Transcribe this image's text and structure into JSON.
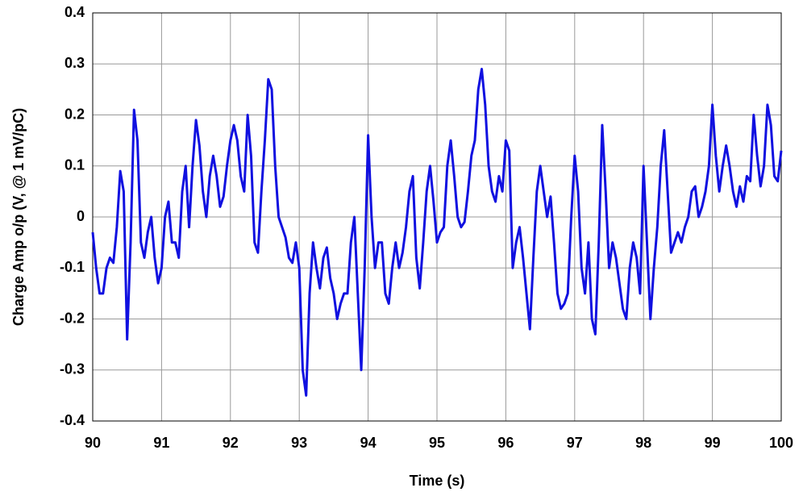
{
  "chart_data": {
    "type": "line",
    "x_label": "Time (s)",
    "y_label": "Charge Amp o/p (V, @ 1 mV/pC)",
    "xlim": [
      90,
      100
    ],
    "xticks": [
      90,
      91,
      92,
      93,
      94,
      95,
      96,
      97,
      98,
      99,
      100
    ],
    "ylim": [
      -0.4,
      0.4
    ],
    "yticks": [
      -0.4,
      -0.3,
      -0.2,
      -0.1,
      0,
      0.1,
      0.2,
      0.3,
      0.4
    ],
    "grid": true,
    "x": [
      90.0,
      90.05,
      90.1,
      90.15,
      90.2,
      90.25,
      90.3,
      90.35,
      90.4,
      90.45,
      90.5,
      90.55,
      90.6,
      90.65,
      90.7,
      90.75,
      90.8,
      90.85,
      90.9,
      90.95,
      91.0,
      91.05,
      91.1,
      91.15,
      91.2,
      91.25,
      91.3,
      91.35,
      91.4,
      91.45,
      91.5,
      91.55,
      91.6,
      91.65,
      91.7,
      91.75,
      91.8,
      91.85,
      91.9,
      91.95,
      92.0,
      92.05,
      92.1,
      92.15,
      92.2,
      92.25,
      92.3,
      92.35,
      92.4,
      92.45,
      92.5,
      92.55,
      92.6,
      92.65,
      92.7,
      92.75,
      92.8,
      92.85,
      92.9,
      92.95,
      93.0,
      93.05,
      93.1,
      93.15,
      93.2,
      93.25,
      93.3,
      93.35,
      93.4,
      93.45,
      93.5,
      93.55,
      93.6,
      93.65,
      93.7,
      93.75,
      93.8,
      93.85,
      93.9,
      93.95,
      94.0,
      94.05,
      94.1,
      94.15,
      94.2,
      94.25,
      94.3,
      94.35,
      94.4,
      94.45,
      94.5,
      94.55,
      94.6,
      94.65,
      94.7,
      94.75,
      94.8,
      94.85,
      94.9,
      94.95,
      95.0,
      95.05,
      95.1,
      95.15,
      95.2,
      95.25,
      95.3,
      95.35,
      95.4,
      95.45,
      95.5,
      95.55,
      95.6,
      95.65,
      95.7,
      95.75,
      95.8,
      95.85,
      95.9,
      95.95,
      96.0,
      96.05,
      96.1,
      96.15,
      96.2,
      96.25,
      96.3,
      96.35,
      96.4,
      96.45,
      96.5,
      96.55,
      96.6,
      96.65,
      96.7,
      96.75,
      96.8,
      96.85,
      96.9,
      96.95,
      97.0,
      97.05,
      97.1,
      97.15,
      97.2,
      97.25,
      97.3,
      97.35,
      97.4,
      97.45,
      97.5,
      97.55,
      97.6,
      97.65,
      97.7,
      97.75,
      97.8,
      97.85,
      97.9,
      97.95,
      98.0,
      98.05,
      98.1,
      98.15,
      98.2,
      98.25,
      98.3,
      98.35,
      98.4,
      98.45,
      98.5,
      98.55,
      98.6,
      98.65,
      98.7,
      98.75,
      98.8,
      98.85,
      98.9,
      98.95,
      99.0,
      99.05,
      99.1,
      99.15,
      99.2,
      99.25,
      99.3,
      99.35,
      99.4,
      99.45,
      99.5,
      99.55,
      99.6,
      99.65,
      99.7,
      99.75,
      99.8,
      99.85,
      99.9,
      99.95,
      100.0
    ],
    "series": [
      {
        "color": "#1010e0",
        "values": [
          -0.03,
          -0.1,
          -0.15,
          -0.15,
          -0.1,
          -0.08,
          -0.09,
          -0.02,
          0.09,
          0.05,
          -0.24,
          -0.05,
          0.21,
          0.15,
          -0.05,
          -0.08,
          -0.03,
          0.0,
          -0.08,
          -0.13,
          -0.1,
          0.0,
          0.03,
          -0.05,
          -0.05,
          -0.08,
          0.05,
          0.1,
          -0.02,
          0.1,
          0.19,
          0.14,
          0.05,
          0.0,
          0.08,
          0.12,
          0.08,
          0.02,
          0.04,
          0.1,
          0.15,
          0.18,
          0.15,
          0.08,
          0.05,
          0.2,
          0.12,
          -0.05,
          -0.07,
          0.05,
          0.15,
          0.27,
          0.25,
          0.1,
          0.0,
          -0.02,
          -0.04,
          -0.08,
          -0.09,
          -0.05,
          -0.1,
          -0.3,
          -0.35,
          -0.15,
          -0.05,
          -0.1,
          -0.14,
          -0.08,
          -0.06,
          -0.12,
          -0.15,
          -0.2,
          -0.17,
          -0.15,
          -0.15,
          -0.05,
          0.0,
          -0.15,
          -0.3,
          -0.1,
          0.16,
          0.0,
          -0.1,
          -0.05,
          -0.05,
          -0.15,
          -0.17,
          -0.1,
          -0.05,
          -0.1,
          -0.07,
          -0.02,
          0.05,
          0.08,
          -0.08,
          -0.14,
          -0.05,
          0.05,
          0.1,
          0.03,
          -0.05,
          -0.03,
          -0.02,
          0.1,
          0.15,
          0.08,
          0.0,
          -0.02,
          -0.01,
          0.05,
          0.12,
          0.15,
          0.25,
          0.29,
          0.22,
          0.1,
          0.05,
          0.03,
          0.08,
          0.05,
          0.15,
          0.13,
          -0.1,
          -0.05,
          -0.02,
          -0.08,
          -0.15,
          -0.22,
          -0.08,
          0.05,
          0.1,
          0.05,
          0.0,
          0.04,
          -0.05,
          -0.15,
          -0.18,
          -0.17,
          -0.15,
          0.0,
          0.12,
          0.05,
          -0.1,
          -0.15,
          -0.05,
          -0.2,
          -0.23,
          -0.05,
          0.18,
          0.05,
          -0.1,
          -0.05,
          -0.08,
          -0.13,
          -0.18,
          -0.2,
          -0.1,
          -0.05,
          -0.08,
          -0.15,
          0.1,
          -0.05,
          -0.2,
          -0.1,
          -0.02,
          0.1,
          0.17,
          0.05,
          -0.07,
          -0.05,
          -0.03,
          -0.05,
          -0.02,
          0.0,
          0.05,
          0.06,
          0.0,
          0.02,
          0.05,
          0.1,
          0.22,
          0.12,
          0.05,
          0.1,
          0.14,
          0.1,
          0.05,
          0.02,
          0.06,
          0.03,
          0.08,
          0.07,
          0.2,
          0.12,
          0.06,
          0.1,
          0.22,
          0.18,
          0.08,
          0.07,
          0.13
        ]
      }
    ]
  }
}
